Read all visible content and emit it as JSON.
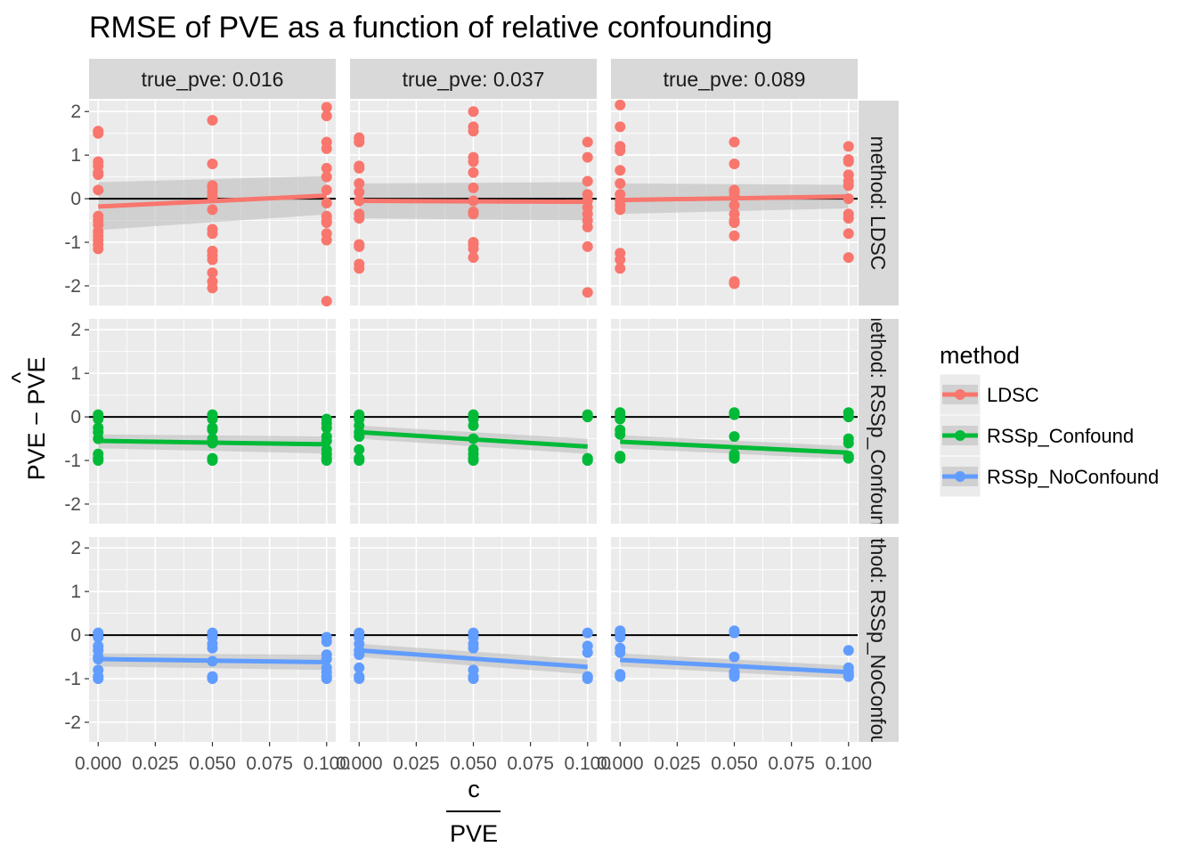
{
  "chart_data": {
    "type": "scatter",
    "title": "RMSE of PVE as a function of relative confounding",
    "xlabel_numerator": "c",
    "xlabel_denominator": "PVE",
    "ylabel_main": "PVE − PVE",
    "ylabel_hat": "^",
    "xlim": [
      -0.004,
      0.104
    ],
    "ylim": [
      -2.45,
      2.25
    ],
    "x_ticks": [
      0.0,
      0.025,
      0.05,
      0.075,
      0.1
    ],
    "x_tick_labels": [
      "0.000",
      "0.025",
      "0.050",
      "0.075",
      "0.100"
    ],
    "y_ticks": [
      -2,
      -1,
      0,
      1,
      2
    ],
    "y_tick_labels": [
      "-2",
      "-1",
      "0",
      "1",
      "2"
    ],
    "grid": true,
    "hline_y": 0,
    "col_strips": [
      "true_pve: 0.016",
      "true_pve: 0.037",
      "true_pve: 0.089"
    ],
    "row_strips": [
      "method: LDSC",
      "method: RSSp_Confound",
      "method: RSSp_NoConfound"
    ],
    "legend": {
      "title": "method",
      "position": "right",
      "items": [
        {
          "label": "LDSC",
          "color": "#F8766D"
        },
        {
          "label": "RSSp_Confound",
          "color": "#00BA38"
        },
        {
          "label": "RSSp_NoConfound",
          "color": "#619CFF"
        }
      ]
    },
    "colors": {
      "LDSC": "#F8766D",
      "RSSp_Confound": "#00BA38",
      "RSSp_NoConfound": "#619CFF",
      "panel_bg": "#EBEBEB",
      "strip_bg": "#D9D9D9",
      "ribbon": "#BEBEBE"
    },
    "panels": [
      {
        "row": 0,
        "col": 0,
        "series": "LDSC",
        "points": [
          [
            0,
            1.55
          ],
          [
            0,
            1.5
          ],
          [
            0,
            0.85
          ],
          [
            0,
            0.75
          ],
          [
            0,
            0.6
          ],
          [
            0,
            0.55
          ],
          [
            0,
            0.2
          ],
          [
            0,
            -0.4
          ],
          [
            0,
            -0.5
          ],
          [
            0,
            -0.6
          ],
          [
            0,
            -0.75
          ],
          [
            0,
            -0.85
          ],
          [
            0,
            -0.95
          ],
          [
            0,
            -1.05
          ],
          [
            0,
            -1.15
          ],
          [
            0.05,
            1.8
          ],
          [
            0.05,
            0.8
          ],
          [
            0.05,
            0.3
          ],
          [
            0.05,
            0.25
          ],
          [
            0.05,
            0.15
          ],
          [
            0.05,
            0.05
          ],
          [
            0.05,
            -0.25
          ],
          [
            0.05,
            -0.7
          ],
          [
            0.05,
            -0.8
          ],
          [
            0.05,
            -1.2
          ],
          [
            0.05,
            -1.3
          ],
          [
            0.05,
            -1.4
          ],
          [
            0.05,
            -1.7
          ],
          [
            0.05,
            -1.9
          ],
          [
            0.05,
            -2.05
          ],
          [
            0.1,
            2.1
          ],
          [
            0.1,
            1.9
          ],
          [
            0.1,
            1.3
          ],
          [
            0.1,
            1.15
          ],
          [
            0.1,
            0.7
          ],
          [
            0.1,
            0.5
          ],
          [
            0.1,
            0.2
          ],
          [
            0.1,
            -0.1
          ],
          [
            0.1,
            -0.4
          ],
          [
            0.1,
            -0.5
          ],
          [
            0.1,
            -0.55
          ],
          [
            0.1,
            -0.8
          ],
          [
            0.1,
            -0.95
          ],
          [
            0.1,
            -2.35
          ]
        ],
        "fit": [
          -0.18,
          0.07
        ],
        "ribbon": [
          [
            -0.72,
            0.38
          ],
          [
            -0.36,
            0.52
          ]
        ]
      },
      {
        "row": 0,
        "col": 1,
        "series": "LDSC",
        "points": [
          [
            0,
            1.4
          ],
          [
            0,
            1.3
          ],
          [
            0,
            0.75
          ],
          [
            0,
            0.7
          ],
          [
            0,
            0.35
          ],
          [
            0,
            0.15
          ],
          [
            0,
            -0.05
          ],
          [
            0,
            -0.35
          ],
          [
            0,
            -0.45
          ],
          [
            0,
            -1.05
          ],
          [
            0,
            -1.1
          ],
          [
            0,
            -1.5
          ],
          [
            0,
            -1.6
          ],
          [
            0.05,
            2.0
          ],
          [
            0.05,
            1.65
          ],
          [
            0.05,
            1.55
          ],
          [
            0.05,
            0.95
          ],
          [
            0.05,
            0.85
          ],
          [
            0.05,
            0.6
          ],
          [
            0.05,
            0.25
          ],
          [
            0.05,
            -0.05
          ],
          [
            0.05,
            -0.3
          ],
          [
            0.05,
            -0.35
          ],
          [
            0.05,
            -1.0
          ],
          [
            0.05,
            -1.05
          ],
          [
            0.05,
            -1.15
          ],
          [
            0.05,
            -1.35
          ],
          [
            0.1,
            1.3
          ],
          [
            0.1,
            0.95
          ],
          [
            0.1,
            0.4
          ],
          [
            0.1,
            0.1
          ],
          [
            0.1,
            -0.05
          ],
          [
            0.1,
            -0.2
          ],
          [
            0.1,
            -0.35
          ],
          [
            0.1,
            -0.5
          ],
          [
            0.1,
            -0.65
          ],
          [
            0.1,
            -1.1
          ],
          [
            0.1,
            -2.15
          ]
        ],
        "fit": [
          -0.05,
          -0.07
        ],
        "ribbon": [
          [
            -0.45,
            0.35
          ],
          [
            -0.5,
            0.38
          ]
        ]
      },
      {
        "row": 0,
        "col": 2,
        "series": "LDSC",
        "points": [
          [
            0,
            2.15
          ],
          [
            0,
            1.65
          ],
          [
            0,
            1.2
          ],
          [
            0,
            1.1
          ],
          [
            0,
            0.65
          ],
          [
            0,
            0.35
          ],
          [
            0,
            0.1
          ],
          [
            0,
            -0.05
          ],
          [
            0,
            -0.15
          ],
          [
            0,
            -0.25
          ],
          [
            0,
            -1.25
          ],
          [
            0,
            -1.4
          ],
          [
            0,
            -1.6
          ],
          [
            0.05,
            1.3
          ],
          [
            0.05,
            0.8
          ],
          [
            0.05,
            0.2
          ],
          [
            0.05,
            0.15
          ],
          [
            0.05,
            0.05
          ],
          [
            0.05,
            -0.15
          ],
          [
            0.05,
            -0.35
          ],
          [
            0.05,
            -0.5
          ],
          [
            0.05,
            -0.55
          ],
          [
            0.05,
            -0.85
          ],
          [
            0.05,
            -1.9
          ],
          [
            0.05,
            -1.95
          ],
          [
            0.1,
            1.2
          ],
          [
            0.1,
            0.9
          ],
          [
            0.1,
            0.85
          ],
          [
            0.1,
            0.55
          ],
          [
            0.1,
            0.4
          ],
          [
            0.1,
            0.3
          ],
          [
            0.1,
            0.0
          ],
          [
            0.1,
            -0.35
          ],
          [
            0.1,
            -0.45
          ],
          [
            0.1,
            -0.8
          ],
          [
            0.1,
            -1.35
          ]
        ],
        "fit": [
          -0.03,
          0.05
        ],
        "ribbon": [
          [
            -0.35,
            0.35
          ],
          [
            -0.22,
            0.32
          ]
        ]
      },
      {
        "row": 1,
        "col": 0,
        "series": "RSSp_Confound",
        "points": [
          [
            0,
            0.05
          ],
          [
            0,
            -0.05
          ],
          [
            0,
            -0.25
          ],
          [
            0,
            -0.35
          ],
          [
            0,
            -0.5
          ],
          [
            0,
            -0.85
          ],
          [
            0,
            -0.95
          ],
          [
            0,
            -1.0
          ],
          [
            0.05,
            0.05
          ],
          [
            0.05,
            -0.05
          ],
          [
            0.05,
            -0.25
          ],
          [
            0.05,
            -0.3
          ],
          [
            0.05,
            -0.5
          ],
          [
            0.05,
            -0.6
          ],
          [
            0.05,
            -0.95
          ],
          [
            0.05,
            -1.0
          ],
          [
            0.1,
            -0.05
          ],
          [
            0.1,
            -0.15
          ],
          [
            0.1,
            -0.25
          ],
          [
            0.1,
            -0.45
          ],
          [
            0.1,
            -0.55
          ],
          [
            0.1,
            -0.75
          ],
          [
            0.1,
            -0.85
          ],
          [
            0.1,
            -0.95
          ],
          [
            0.1,
            -1.0
          ]
        ],
        "fit": [
          -0.55,
          -0.63
        ],
        "ribbon": [
          [
            -0.72,
            -0.4
          ],
          [
            -0.84,
            -0.45
          ]
        ]
      },
      {
        "row": 1,
        "col": 1,
        "series": "RSSp_Confound",
        "points": [
          [
            0,
            0.05
          ],
          [
            0,
            -0.05
          ],
          [
            0,
            -0.2
          ],
          [
            0,
            -0.35
          ],
          [
            0,
            -0.45
          ],
          [
            0,
            -0.75
          ],
          [
            0,
            -0.95
          ],
          [
            0,
            -1.0
          ],
          [
            0.05,
            0.05
          ],
          [
            0.05,
            -0.05
          ],
          [
            0.05,
            -0.2
          ],
          [
            0.05,
            -0.5
          ],
          [
            0.05,
            -0.75
          ],
          [
            0.05,
            -0.85
          ],
          [
            0.05,
            -0.95
          ],
          [
            0.05,
            -1.0
          ],
          [
            0.1,
            0.05
          ],
          [
            0.1,
            0.0
          ],
          [
            0.1,
            -0.95
          ],
          [
            0.1,
            -1.0
          ]
        ],
        "fit": [
          -0.35,
          -0.68
        ],
        "ribbon": [
          [
            -0.5,
            -0.2
          ],
          [
            -0.85,
            -0.5
          ]
        ]
      },
      {
        "row": 1,
        "col": 2,
        "series": "RSSp_Confound",
        "points": [
          [
            0,
            0.1
          ],
          [
            0,
            0.05
          ],
          [
            0,
            -0.05
          ],
          [
            0,
            -0.3
          ],
          [
            0,
            -0.4
          ],
          [
            0,
            -0.9
          ],
          [
            0,
            -0.95
          ],
          [
            0.05,
            0.1
          ],
          [
            0.05,
            0.05
          ],
          [
            0.05,
            -0.45
          ],
          [
            0.05,
            -0.85
          ],
          [
            0.05,
            -0.9
          ],
          [
            0.05,
            -0.95
          ],
          [
            0.1,
            0.1
          ],
          [
            0.1,
            0.0
          ],
          [
            0.1,
            -0.5
          ],
          [
            0.1,
            -0.6
          ],
          [
            0.1,
            -0.9
          ],
          [
            0.1,
            -0.95
          ]
        ],
        "fit": [
          -0.57,
          -0.82
        ],
        "ribbon": [
          [
            -0.72,
            -0.42
          ],
          [
            -0.97,
            -0.67
          ]
        ]
      },
      {
        "row": 2,
        "col": 0,
        "series": "RSSp_NoConfound",
        "points": [
          [
            0,
            0.05
          ],
          [
            0,
            -0.05
          ],
          [
            0,
            -0.25
          ],
          [
            0,
            -0.35
          ],
          [
            0,
            -0.5
          ],
          [
            0,
            -0.8
          ],
          [
            0,
            -0.95
          ],
          [
            0,
            -1.0
          ],
          [
            0.05,
            0.05
          ],
          [
            0.05,
            -0.05
          ],
          [
            0,
            -0.55
          ],
          [
            0.05,
            -0.2
          ],
          [
            0.05,
            -0.3
          ],
          [
            0.05,
            -0.6
          ],
          [
            0.05,
            -0.95
          ],
          [
            0.05,
            -1.0
          ],
          [
            0.1,
            -0.05
          ],
          [
            0.1,
            -0.15
          ],
          [
            0.1,
            -0.45
          ],
          [
            0.1,
            -0.55
          ],
          [
            0.1,
            -0.75
          ],
          [
            0.1,
            -0.85
          ],
          [
            0.1,
            -0.95
          ],
          [
            0.1,
            -1.0
          ]
        ],
        "fit": [
          -0.55,
          -0.62
        ],
        "ribbon": [
          [
            -0.72,
            -0.42
          ],
          [
            -0.8,
            -0.45
          ]
        ]
      },
      {
        "row": 2,
        "col": 1,
        "series": "RSSp_NoConfound",
        "points": [
          [
            0,
            0.05
          ],
          [
            0,
            -0.05
          ],
          [
            0,
            -0.2
          ],
          [
            0,
            -0.35
          ],
          [
            0,
            -0.45
          ],
          [
            0,
            -0.75
          ],
          [
            0,
            -0.95
          ],
          [
            0,
            -1.0
          ],
          [
            0.05,
            0.05
          ],
          [
            0.05,
            -0.05
          ],
          [
            0.05,
            -0.2
          ],
          [
            0.05,
            -0.3
          ],
          [
            0.05,
            -0.8
          ],
          [
            0.05,
            -0.95
          ],
          [
            0.05,
            -1.0
          ],
          [
            0.1,
            0.05
          ],
          [
            0.1,
            -0.25
          ],
          [
            0.1,
            -0.4
          ],
          [
            0.1,
            -0.95
          ],
          [
            0.1,
            -1.0
          ]
        ],
        "fit": [
          -0.35,
          -0.73
        ],
        "ribbon": [
          [
            -0.5,
            -0.2
          ],
          [
            -0.9,
            -0.56
          ]
        ]
      },
      {
        "row": 2,
        "col": 2,
        "series": "RSSp_NoConfound",
        "points": [
          [
            0,
            0.1
          ],
          [
            0,
            0.05
          ],
          [
            0,
            -0.05
          ],
          [
            0,
            -0.3
          ],
          [
            0,
            -0.4
          ],
          [
            0,
            -0.9
          ],
          [
            0,
            -0.95
          ],
          [
            0.05,
            0.1
          ],
          [
            0.05,
            0.05
          ],
          [
            0.05,
            -0.5
          ],
          [
            0.05,
            -0.85
          ],
          [
            0.05,
            -0.9
          ],
          [
            0.05,
            -0.95
          ],
          [
            0.1,
            -0.35
          ],
          [
            0.1,
            -0.75
          ],
          [
            0.1,
            -0.85
          ],
          [
            0.1,
            -0.9
          ],
          [
            0.1,
            -0.95
          ]
        ],
        "fit": [
          -0.57,
          -0.85
        ],
        "ribbon": [
          [
            -0.72,
            -0.42
          ],
          [
            -1.0,
            -0.7
          ]
        ]
      }
    ]
  }
}
